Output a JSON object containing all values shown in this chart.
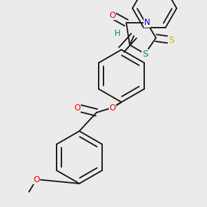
{
  "bg_color": "#ebebeb",
  "bond_color": "#1a1a1a",
  "bond_lw": 1.4,
  "atom_colors": {
    "O": "#ff0000",
    "N": "#0000cd",
    "S_yellow": "#ccbb00",
    "S_teal": "#008080",
    "H": "#008080",
    "C": "#1a1a1a"
  },
  "font_size": 8.5,
  "fig_size": [
    3.0,
    3.0
  ],
  "dpi": 100,
  "xlim": [
    0,
    300
  ],
  "ylim": [
    0,
    300
  ]
}
